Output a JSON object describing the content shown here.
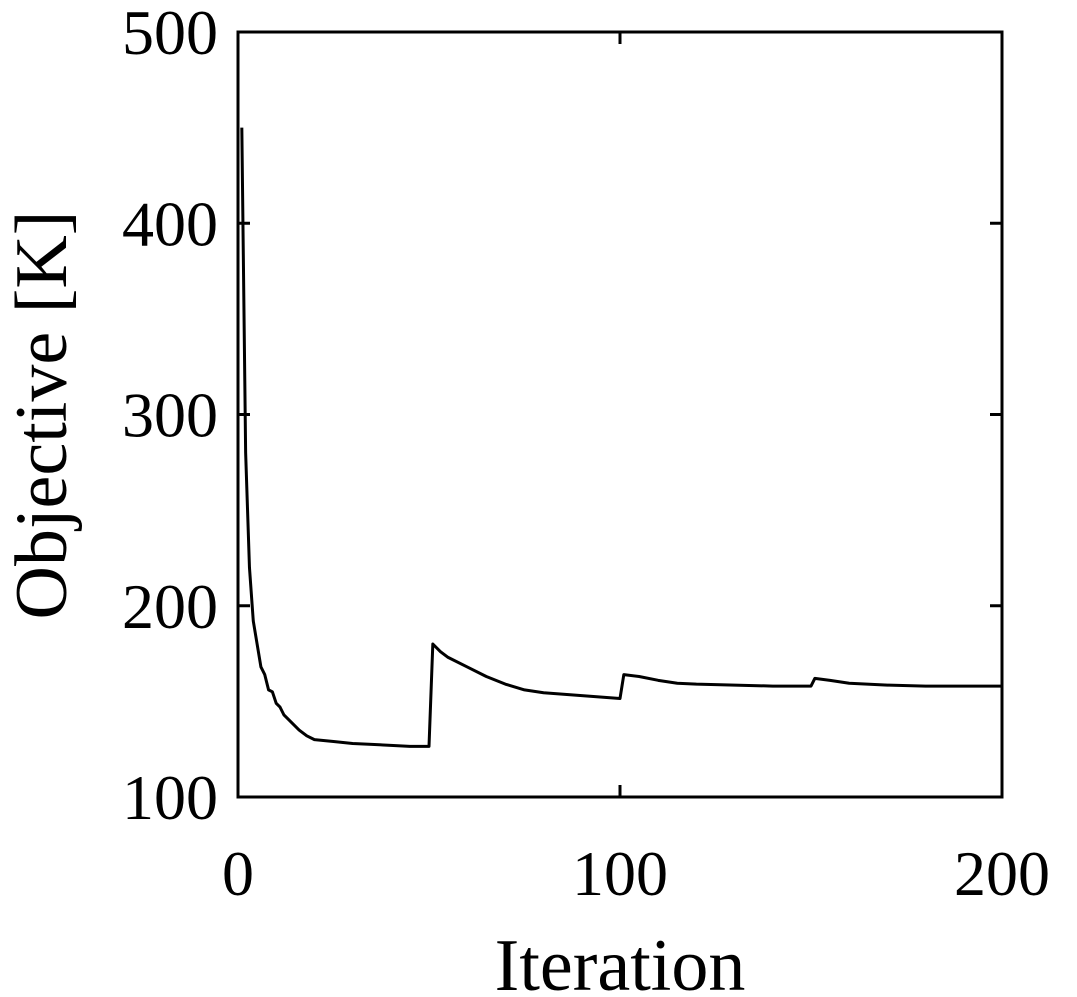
{
  "chart_data": {
    "type": "line",
    "x_label": "Iteration",
    "y_label": "Objective [K]",
    "x": [
      1,
      2,
      3,
      4,
      5,
      6,
      7,
      8,
      9,
      10,
      11,
      12,
      14,
      16,
      18,
      20,
      25,
      30,
      35,
      40,
      45,
      50,
      51,
      53,
      55,
      60,
      65,
      70,
      75,
      80,
      90,
      100,
      101,
      105,
      110,
      115,
      120,
      130,
      140,
      150,
      151,
      155,
      160,
      170,
      180,
      200
    ],
    "values": [
      450,
      280,
      220,
      192,
      180,
      168,
      164,
      156,
      155,
      149,
      147,
      143,
      139,
      135,
      132,
      130,
      129,
      128,
      127.5,
      127,
      126.5,
      126.5,
      180,
      176,
      173,
      168,
      163,
      159,
      156,
      154.5,
      153,
      151.5,
      164,
      163,
      161,
      159.5,
      159,
      158.5,
      158,
      158,
      162,
      161,
      159.5,
      158.5,
      158,
      158
    ],
    "color": "#000000",
    "xlim": [
      0,
      200
    ],
    "xticks": [
      0,
      100,
      200
    ],
    "ylim": [
      100,
      500
    ],
    "yticks": [
      100,
      200,
      300,
      400,
      500
    ]
  }
}
